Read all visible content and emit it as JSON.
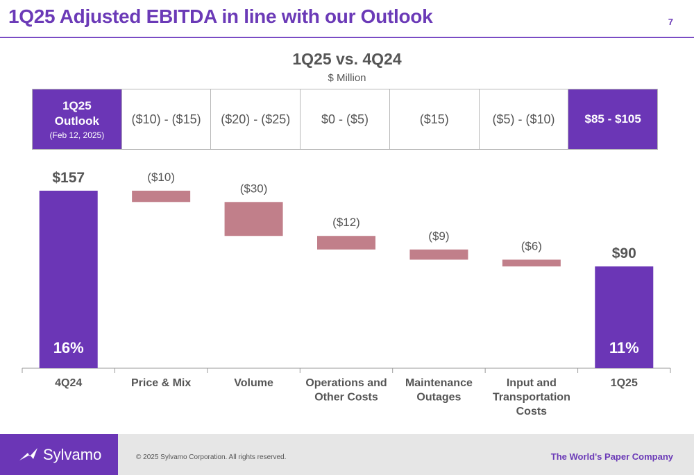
{
  "slide": {
    "title": "1Q25 Adjusted EBITDA in line with our Outlook",
    "page_number": "7"
  },
  "outlook": {
    "header_line1": "1Q25",
    "header_line2": "Outlook",
    "header_line3": "(Feb 12, 2025)",
    "ranges": [
      "($10) - ($15)",
      "($20) - ($25)",
      "$0 - ($5)",
      "($15)",
      "($5) - ($10)"
    ],
    "final": "$85 - $105"
  },
  "chart_data": {
    "type": "bar",
    "subtype": "waterfall",
    "title": "1Q25 vs. 4Q24",
    "subtitle": "$ Million",
    "categories": [
      "4Q24",
      "Price & Mix",
      "Volume",
      "Operations and Other Costs",
      "Maintenance Outages",
      "Input and Transportation Costs",
      "1Q25"
    ],
    "category_lines": [
      [
        "4Q24"
      ],
      [
        "Price & Mix"
      ],
      [
        "Volume"
      ],
      [
        "Operations and",
        "Other Costs"
      ],
      [
        "Maintenance",
        "Outages"
      ],
      [
        "Input and",
        "Transportation",
        "Costs"
      ],
      [
        "1Q25"
      ]
    ],
    "values": [
      157,
      -10,
      -30,
      -12,
      -9,
      -6,
      90
    ],
    "kinds": [
      "total",
      "delta",
      "delta",
      "delta",
      "delta",
      "delta",
      "total"
    ],
    "value_labels": [
      "$157",
      "($10)",
      "($30)",
      "($12)",
      "($9)",
      "($6)",
      "$90"
    ],
    "margin_labels": [
      "16%",
      "",
      "",
      "",
      "",
      "",
      "11%"
    ],
    "ylim": [
      0,
      160
    ],
    "colors": {
      "total": "#6b36b6",
      "delta": "#c17f8a"
    }
  },
  "footer": {
    "logo_text": "Sylvamo",
    "copyright": "© 2025 Sylvamo Corporation. All rights reserved.",
    "tagline": "The World's Paper Company"
  },
  "colors": {
    "brand_purple": "#6b36b6",
    "accent_text": "#6b3ab7",
    "negative_bar": "#c17f8a",
    "footer_bg": "#e6e6e6"
  }
}
